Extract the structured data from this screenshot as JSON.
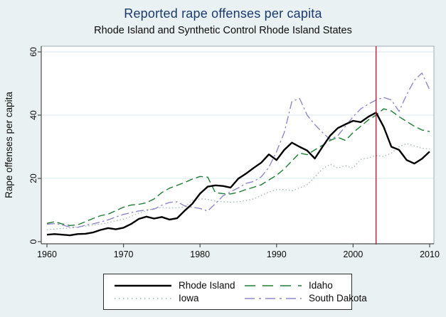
{
  "header": {
    "title": "Reported rape offenses per capita",
    "subtitle": "Rhode Island and Synthetic Control Rhode Island States"
  },
  "colors": {
    "page_background": "#e9f1f3",
    "plot_background": "#ffffff",
    "plot_border": "#8a9aa2",
    "gridline": "#dbe8ec",
    "axis": "#4c4c4c",
    "title_text": "#1c3a6e",
    "body_text": "#0a0a0a",
    "treatment_line": "#c01a3a"
  },
  "chart_data": {
    "type": "line",
    "title": "Reported rape offenses per capita",
    "subtitle": "Rhode Island and Synthetic Control Rhode Island States",
    "xlabel": "",
    "ylabel": "Rape offenses per capita",
    "ylim": [
      0,
      60
    ],
    "y_ticks": [
      0,
      20,
      40,
      60
    ],
    "x_ticks": [
      1960,
      1970,
      1980,
      1990,
      2000,
      2010
    ],
    "grid": "horizontal-only",
    "legend_position": "bottom",
    "vline": {
      "x": 2003,
      "color": "#c01a3a"
    },
    "years": [
      1960,
      1961,
      1962,
      1963,
      1964,
      1965,
      1966,
      1967,
      1968,
      1969,
      1970,
      1971,
      1972,
      1973,
      1974,
      1975,
      1976,
      1977,
      1978,
      1979,
      1980,
      1981,
      1982,
      1983,
      1984,
      1985,
      1986,
      1987,
      1988,
      1989,
      1990,
      1991,
      1992,
      1993,
      1994,
      1995,
      1996,
      1997,
      1998,
      1999,
      2000,
      2001,
      2002,
      2003,
      2004,
      2005,
      2006,
      2007,
      2008,
      2009,
      2010
    ],
    "series": [
      {
        "name": "Rhode Island",
        "color": "#000000",
        "width": 2.4,
        "dash": "",
        "legend_dash": "",
        "values": [
          2.2,
          2.4,
          2.2,
          2.0,
          2.4,
          2.5,
          2.9,
          3.7,
          4.3,
          3.9,
          4.4,
          5.6,
          7.2,
          7.9,
          7.3,
          7.8,
          7.0,
          7.4,
          9.8,
          12.0,
          15.2,
          17.4,
          17.8,
          17.6,
          17.1,
          19.9,
          21.5,
          23.3,
          25.0,
          27.6,
          25.8,
          29.0,
          31.3,
          30.0,
          28.8,
          26.3,
          30.0,
          33.5,
          35.9,
          37.1,
          38.2,
          37.8,
          39.5,
          40.8,
          36.3,
          30.0,
          29.0,
          25.8,
          24.7,
          26.2,
          28.5
        ]
      },
      {
        "name": "Idaho",
        "color": "#1e7d32",
        "width": 1.4,
        "dash": "10,5",
        "legend_dash": "15,10",
        "values": [
          5.8,
          6.3,
          5.6,
          5.1,
          5.3,
          6.3,
          7.3,
          8.2,
          8.7,
          9.8,
          10.9,
          11.6,
          11.8,
          12.3,
          13.5,
          15.5,
          16.9,
          17.8,
          18.7,
          19.8,
          20.6,
          20.4,
          15.5,
          15.2,
          15.1,
          15.6,
          16.5,
          17.2,
          18.0,
          19.5,
          21.0,
          23.0,
          25.5,
          28.0,
          27.5,
          29.0,
          30.5,
          32.0,
          33.0,
          32.0,
          34.5,
          36.5,
          38.5,
          40.0,
          42.0,
          41.3,
          39.5,
          38.0,
          36.5,
          35.3,
          34.8
        ]
      },
      {
        "name": "Iowa",
        "color": "#a2b6b0",
        "width": 1.3,
        "dash": "1.5,3",
        "legend_dash": "1.5,4.5",
        "values": [
          3.8,
          4.0,
          4.2,
          4.3,
          4.6,
          4.9,
          5.2,
          5.6,
          6.0,
          6.6,
          7.1,
          8.0,
          9.0,
          9.8,
          10.5,
          10.8,
          10.6,
          10.7,
          11.0,
          13.1,
          13.5,
          13.4,
          12.8,
          12.6,
          12.5,
          12.6,
          13.0,
          13.5,
          14.6,
          15.7,
          16.4,
          16.5,
          16.1,
          17.0,
          18.0,
          20.5,
          23.0,
          24.5,
          23.3,
          24.0,
          23.3,
          26.0,
          26.5,
          27.3,
          26.9,
          28.0,
          30.0,
          31.0,
          30.3,
          29.5,
          29.3
        ]
      },
      {
        "name": "South Dakota",
        "color": "#8f88cc",
        "width": 1.4,
        "dash": "11,4,2.5,4",
        "legend_dash": "14,6,3,6",
        "values": [
          5.5,
          5.7,
          5.3,
          4.6,
          4.5,
          5.2,
          5.6,
          6.2,
          6.9,
          7.8,
          8.6,
          9.2,
          9.7,
          10.0,
          10.3,
          11.5,
          12.4,
          12.6,
          11.3,
          10.9,
          10.5,
          9.7,
          12.0,
          14.5,
          15.8,
          17.0,
          18.4,
          19.0,
          20.5,
          23.5,
          28.5,
          34.5,
          44.3,
          45.3,
          40.0,
          37.0,
          34.5,
          32.3,
          33.5,
          36.5,
          39.5,
          42.0,
          43.5,
          44.8,
          45.6,
          44.8,
          41.2,
          46.5,
          51.0,
          53.3,
          48.0
        ]
      }
    ]
  }
}
